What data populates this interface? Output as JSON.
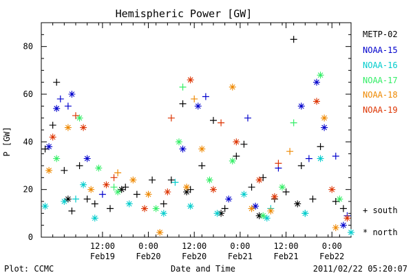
{
  "chart_data": {
    "type": "scatter",
    "title": "Hemispheric Power [GW]",
    "ylabel": "P [GW]",
    "xlabel": "Date and Time",
    "ylim": [
      0,
      90
    ],
    "yticks": [
      0,
      20,
      40,
      60,
      80
    ],
    "xlim": [
      "2011-02-18 20:00",
      "2011-02-22 05:00"
    ],
    "xticks": [
      {
        "t": "2011-02-19 12:00",
        "top": "12:00",
        "bottom": "Feb19"
      },
      {
        "t": "2011-02-20 00:00",
        "top": "0:00",
        "bottom": "Feb20"
      },
      {
        "t": "2011-02-20 12:00",
        "top": "12:00",
        "bottom": "Feb20"
      },
      {
        "t": "2011-02-21 00:00",
        "top": "0:00",
        "bottom": "Feb21"
      },
      {
        "t": "2011-02-21 12:00",
        "top": "12:00",
        "bottom": "Feb21"
      },
      {
        "t": "2011-02-22 00:00",
        "top": "0:00",
        "bottom": "Feb22"
      }
    ],
    "markers": {
      "south": "+",
      "north": "*"
    },
    "legend_position": "right",
    "series": [
      {
        "name": "METP-02",
        "color": "#000000",
        "south": [
          [
            "2011-02-18 21:00",
            37
          ],
          [
            "2011-02-18 23:00",
            47
          ],
          [
            "2011-02-19 00:00",
            65
          ],
          [
            "2011-02-19 02:00",
            28
          ],
          [
            "2011-02-19 04:00",
            11
          ],
          [
            "2011-02-19 06:00",
            30
          ],
          [
            "2011-02-19 08:00",
            16
          ],
          [
            "2011-02-19 10:00",
            14
          ],
          [
            "2011-02-19 14:00",
            12
          ],
          [
            "2011-02-19 18:00",
            21
          ],
          [
            "2011-02-19 21:00",
            18
          ],
          [
            "2011-02-20 01:00",
            24
          ],
          [
            "2011-02-20 04:00",
            14
          ],
          [
            "2011-02-20 06:00",
            24
          ],
          [
            "2011-02-20 09:00",
            56
          ],
          [
            "2011-02-20 11:00",
            20
          ],
          [
            "2011-02-20 14:00",
            30
          ],
          [
            "2011-02-20 17:00",
            49
          ],
          [
            "2011-02-20 20:00",
            12
          ],
          [
            "2011-02-20 23:00",
            34
          ],
          [
            "2011-02-21 01:00",
            39
          ],
          [
            "2011-02-21 03:00",
            21
          ],
          [
            "2011-02-21 06:00",
            25
          ],
          [
            "2011-02-21 09:00",
            16
          ],
          [
            "2011-02-21 12:00",
            19
          ],
          [
            "2011-02-21 14:00",
            83
          ],
          [
            "2011-02-21 16:00",
            30
          ],
          [
            "2011-02-21 19:00",
            16
          ],
          [
            "2011-02-21 21:00",
            38
          ],
          [
            "2011-02-22 01:00",
            15
          ],
          [
            "2011-02-22 03:00",
            12
          ]
        ],
        "north": [
          [
            "2011-02-19 03:00",
            16
          ],
          [
            "2011-02-19 17:00",
            20
          ],
          [
            "2011-02-20 10:00",
            19
          ],
          [
            "2011-02-20 19:00",
            10
          ],
          [
            "2011-02-21 05:00",
            9
          ],
          [
            "2011-02-21 15:00",
            14
          ]
        ]
      },
      {
        "name": "NOAA-15",
        "color": "#0000cc",
        "south": [
          [
            "2011-02-19 01:00",
            58
          ],
          [
            "2011-02-19 03:00",
            55
          ],
          [
            "2011-02-19 12:00",
            18
          ],
          [
            "2011-02-20 15:00",
            59
          ],
          [
            "2011-02-21 02:00",
            50
          ],
          [
            "2011-02-21 10:00",
            29
          ],
          [
            "2011-02-21 18:00",
            33
          ],
          [
            "2011-02-22 01:00",
            34
          ],
          [
            "2011-02-22 04:00",
            9
          ]
        ],
        "north": [
          [
            "2011-02-18 22:00",
            38
          ],
          [
            "2011-02-19 00:00",
            54
          ],
          [
            "2011-02-19 04:00",
            60
          ],
          [
            "2011-02-19 08:00",
            33
          ],
          [
            "2011-02-20 09:00",
            37
          ],
          [
            "2011-02-20 13:00",
            55
          ],
          [
            "2011-02-20 21:00",
            16
          ],
          [
            "2011-02-21 04:00",
            13
          ],
          [
            "2011-02-21 16:00",
            55
          ],
          [
            "2011-02-21 20:00",
            65
          ],
          [
            "2011-02-21 22:00",
            46
          ],
          [
            "2011-02-22 03:00",
            5
          ]
        ]
      },
      {
        "name": "NOAA-16",
        "color": "#00cccc",
        "south": [
          [
            "2011-02-19 05:00",
            16
          ],
          [
            "2011-02-20 07:00",
            23
          ],
          [
            "2011-02-21 08:00",
            12
          ],
          [
            "2011-02-21 17:00",
            10
          ]
        ],
        "north": [
          [
            "2011-02-18 21:00",
            13
          ],
          [
            "2011-02-19 02:00",
            15
          ],
          [
            "2011-02-19 07:00",
            22
          ],
          [
            "2011-02-19 10:00",
            8
          ],
          [
            "2011-02-19 19:00",
            14
          ],
          [
            "2011-02-20 04:00",
            10
          ],
          [
            "2011-02-20 11:00",
            13
          ],
          [
            "2011-02-20 18:00",
            10
          ],
          [
            "2011-02-21 01:00",
            18
          ],
          [
            "2011-02-21 07:00",
            8
          ],
          [
            "2011-02-21 17:00",
            10
          ],
          [
            "2011-02-21 21:00",
            33
          ],
          [
            "2011-02-22 05:00",
            2
          ]
        ]
      },
      {
        "name": "NOAA-17",
        "color": "#33ee66",
        "south": [
          [
            "2011-02-19 15:00",
            21
          ],
          [
            "2011-02-20 09:00",
            63
          ],
          [
            "2011-02-21 14:00",
            48
          ]
        ],
        "north": [
          [
            "2011-02-19 00:00",
            33
          ],
          [
            "2011-02-19 06:00",
            50
          ],
          [
            "2011-02-19 11:00",
            29
          ],
          [
            "2011-02-19 16:00",
            19
          ],
          [
            "2011-02-20 02:00",
            12
          ],
          [
            "2011-02-20 08:00",
            40
          ],
          [
            "2011-02-20 16:00",
            24
          ],
          [
            "2011-02-20 22:00",
            32
          ],
          [
            "2011-02-21 06:00",
            9
          ],
          [
            "2011-02-21 11:00",
            21
          ],
          [
            "2011-02-21 21:00",
            68
          ],
          [
            "2011-02-22 02:00",
            16
          ]
        ]
      },
      {
        "name": "NOAA-18",
        "color": "#ee8800",
        "south": [
          [
            "2011-02-19 16:00",
            27
          ],
          [
            "2011-02-20 12:00",
            58
          ],
          [
            "2011-02-21 13:00",
            36
          ]
        ],
        "north": [
          [
            "2011-02-18 22:00",
            28
          ],
          [
            "2011-02-19 03:00",
            46
          ],
          [
            "2011-02-19 09:00",
            20
          ],
          [
            "2011-02-19 20:00",
            24
          ],
          [
            "2011-02-20 00:00",
            18
          ],
          [
            "2011-02-20 03:00",
            2
          ],
          [
            "2011-02-20 10:00",
            21
          ],
          [
            "2011-02-20 14:00",
            37
          ],
          [
            "2011-02-20 22:00",
            63
          ],
          [
            "2011-02-21 03:00",
            12
          ],
          [
            "2011-02-21 08:00",
            11
          ],
          [
            "2011-02-21 22:00",
            50
          ],
          [
            "2011-02-22 01:00",
            4
          ]
        ]
      },
      {
        "name": "NOAA-19",
        "color": "#dd3300",
        "south": [
          [
            "2011-02-19 05:00",
            51
          ],
          [
            "2011-02-19 15:00",
            25
          ],
          [
            "2011-02-20 06:00",
            50
          ],
          [
            "2011-02-20 19:00",
            48
          ],
          [
            "2011-02-21 10:00",
            31
          ]
        ],
        "north": [
          [
            "2011-02-18 23:00",
            42
          ],
          [
            "2011-02-19 07:00",
            46
          ],
          [
            "2011-02-19 13:00",
            22
          ],
          [
            "2011-02-19 23:00",
            12
          ],
          [
            "2011-02-20 05:00",
            19
          ],
          [
            "2011-02-20 11:00",
            66
          ],
          [
            "2011-02-20 17:00",
            20
          ],
          [
            "2011-02-20 23:00",
            40
          ],
          [
            "2011-02-21 05:00",
            24
          ],
          [
            "2011-02-21 09:00",
            17
          ],
          [
            "2011-02-21 20:00",
            57
          ],
          [
            "2011-02-22 00:00",
            20
          ],
          [
            "2011-02-22 04:00",
            8
          ]
        ]
      }
    ]
  },
  "footer": {
    "plot_credit": "Plot: CCMC",
    "timestamp": "2011/02/22 05:20:07"
  },
  "legend_markers": {
    "south_label": "+ south",
    "north_label": "* north"
  }
}
